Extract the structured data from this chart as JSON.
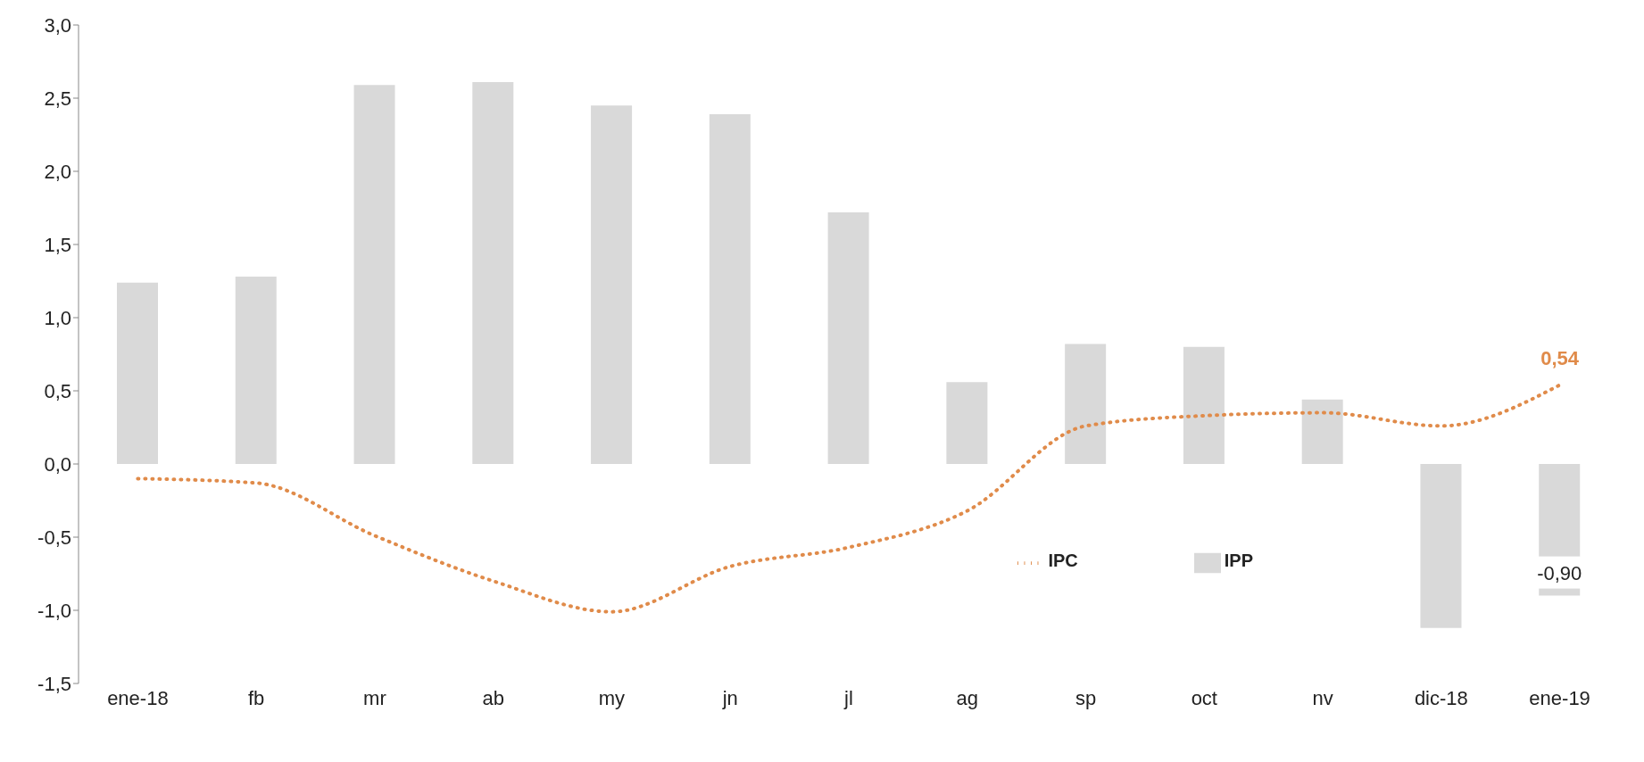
{
  "chart_data": {
    "type": "bar",
    "categories": [
      "ene-18",
      "fb",
      "mr",
      "ab",
      "my",
      "jn",
      "jl",
      "ag",
      "sp",
      "oct",
      "nv",
      "dic-18",
      "ene-19"
    ],
    "series": [
      {
        "name": "IPP",
        "color": "#d9d9d9",
        "values": [
          1.24,
          1.28,
          2.59,
          2.61,
          2.45,
          2.39,
          1.72,
          0.56,
          0.82,
          0.8,
          0.44,
          -1.12,
          -0.9
        ],
        "value_labels": [
          null,
          null,
          null,
          null,
          null,
          null,
          null,
          null,
          null,
          null,
          null,
          null,
          "-0,90"
        ]
      },
      {
        "name": "IPC",
        "type": "line",
        "color": "#e08b4a",
        "line_style": "dotted",
        "marker": "none",
        "values": [
          -0.1,
          -0.13,
          -0.49,
          -0.8,
          -1.01,
          -0.7,
          -0.57,
          -0.32,
          0.26,
          0.33,
          0.35,
          0.26,
          0.54
        ],
        "value_labels": [
          null,
          null,
          null,
          null,
          null,
          null,
          null,
          null,
          null,
          null,
          null,
          null,
          "0,54"
        ]
      }
    ],
    "ylim": [
      -1.5,
      3.0
    ],
    "yticks": [
      {
        "value": -1.5,
        "label": "-1,5"
      },
      {
        "value": -1,
        "label": "-1,0"
      },
      {
        "value": -0.5,
        "label": "-0,5"
      },
      {
        "value": 0,
        "label": "0,0"
      },
      {
        "value": 0.5,
        "label": "0,5"
      },
      {
        "value": 1,
        "label": "1,0"
      },
      {
        "value": 1.5,
        "label": "1,5"
      },
      {
        "value": 2,
        "label": "2,0"
      },
      {
        "value": 2.5,
        "label": "2,5"
      },
      {
        "value": 3,
        "label": "3,0"
      }
    ],
    "grid": false,
    "legend": "bottom right"
  }
}
